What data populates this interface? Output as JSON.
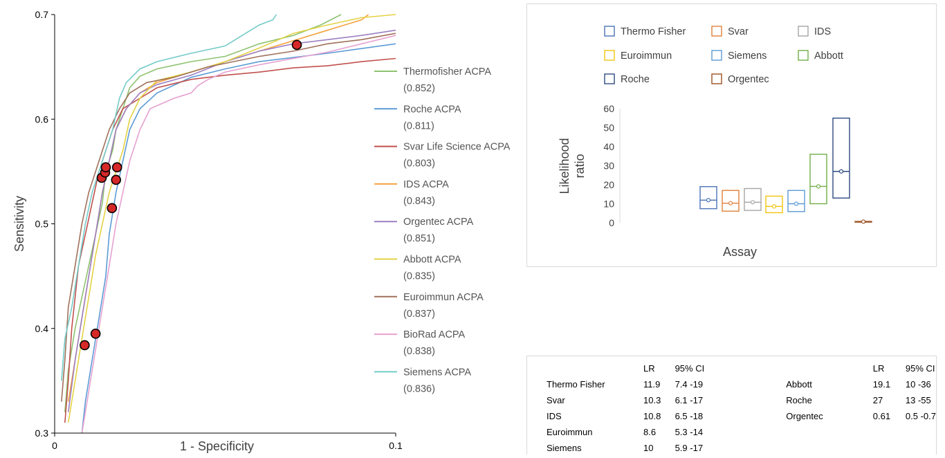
{
  "chart_data": [
    {
      "type": "line",
      "xlabel": "1 - Specificity",
      "ylabel": "Sensitivity",
      "xlim": [
        0,
        0.1
      ],
      "ylim": [
        0.3,
        0.7
      ],
      "x_ticks": [
        "0",
        "0.1"
      ],
      "y_ticks": [
        "0.3",
        "0.4",
        "0.5",
        "0.6",
        "0.7"
      ],
      "grid": false,
      "legend_position": "right",
      "series": [
        {
          "name": "Thermofisher ACPA",
          "auc": "(0.852)",
          "color": "#8dc26f",
          "points": [
            [
              0.003,
              0.32
            ],
            [
              0.004,
              0.36
            ],
            [
              0.006,
              0.4
            ],
            [
              0.008,
              0.43
            ],
            [
              0.01,
              0.46
            ],
            [
              0.012,
              0.49
            ],
            [
              0.014,
              0.52
            ],
            [
              0.015,
              0.55
            ],
            [
              0.017,
              0.57
            ],
            [
              0.018,
              0.59
            ],
            [
              0.02,
              0.61
            ],
            [
              0.022,
              0.63
            ],
            [
              0.025,
              0.641
            ],
            [
              0.03,
              0.648
            ],
            [
              0.04,
              0.655
            ],
            [
              0.05,
              0.66
            ],
            [
              0.06,
              0.672
            ],
            [
              0.07,
              0.68
            ],
            [
              0.078,
              0.69
            ],
            [
              0.084,
              0.7
            ]
          ]
        },
        {
          "name": "Roche ACPA",
          "auc": "(0.811)",
          "color": "#5b9bd5",
          "points": [
            [
              0.008,
              0.3
            ],
            [
              0.009,
              0.33
            ],
            [
              0.011,
              0.37
            ],
            [
              0.013,
              0.41
            ],
            [
              0.015,
              0.45
            ],
            [
              0.016,
              0.49
            ],
            [
              0.018,
              0.53
            ],
            [
              0.02,
              0.56
            ],
            [
              0.022,
              0.59
            ],
            [
              0.025,
              0.61
            ],
            [
              0.03,
              0.625
            ],
            [
              0.04,
              0.64
            ],
            [
              0.05,
              0.648
            ],
            [
              0.06,
              0.655
            ],
            [
              0.08,
              0.663
            ],
            [
              0.1,
              0.672
            ]
          ]
        },
        {
          "name": "Svar Life Science ACPA",
          "auc": "(0.803)",
          "color": "#c0504d",
          "points": [
            [
              0.003,
              0.31
            ],
            [
              0.004,
              0.35
            ],
            [
              0.005,
              0.4
            ],
            [
              0.006,
              0.43
            ],
            [
              0.007,
              0.46
            ],
            [
              0.009,
              0.49
            ],
            [
              0.011,
              0.52
            ],
            [
              0.013,
              0.55
            ],
            [
              0.015,
              0.57
            ],
            [
              0.017,
              0.59
            ],
            [
              0.02,
              0.61
            ],
            [
              0.025,
              0.62
            ],
            [
              0.03,
              0.63
            ],
            [
              0.04,
              0.638
            ],
            [
              0.05,
              0.642
            ],
            [
              0.06,
              0.645
            ],
            [
              0.07,
              0.649
            ],
            [
              0.08,
              0.651
            ],
            [
              0.09,
              0.655
            ],
            [
              0.1,
              0.658
            ]
          ]
        },
        {
          "name": "IDS ACPA",
          "auc": "(0.843)",
          "color": "#f4a340",
          "points": [
            [
              0.004,
              0.33
            ],
            [
              0.006,
              0.37
            ],
            [
              0.008,
              0.41
            ],
            [
              0.01,
              0.45
            ],
            [
              0.012,
              0.49
            ],
            [
              0.014,
              0.53
            ],
            [
              0.016,
              0.56
            ],
            [
              0.018,
              0.59
            ],
            [
              0.021,
              0.61
            ],
            [
              0.025,
              0.625
            ],
            [
              0.03,
              0.635
            ],
            [
              0.04,
              0.645
            ],
            [
              0.05,
              0.655
            ],
            [
              0.06,
              0.665
            ],
            [
              0.07,
              0.675
            ],
            [
              0.08,
              0.685
            ],
            [
              0.09,
              0.695
            ],
            [
              0.092,
              0.7
            ]
          ]
        },
        {
          "name": "Orgentec ACPA",
          "auc": "(0.851)",
          "color": "#9b7fc3",
          "points": [
            [
              0.004,
              0.32
            ],
            [
              0.006,
              0.37
            ],
            [
              0.008,
              0.41
            ],
            [
              0.01,
              0.45
            ],
            [
              0.012,
              0.49
            ],
            [
              0.014,
              0.53
            ],
            [
              0.016,
              0.56
            ],
            [
              0.018,
              0.59
            ],
            [
              0.021,
              0.61
            ],
            [
              0.025,
              0.625
            ],
            [
              0.03,
              0.633
            ],
            [
              0.04,
              0.642
            ],
            [
              0.05,
              0.655
            ],
            [
              0.06,
              0.665
            ],
            [
              0.07,
              0.672
            ],
            [
              0.08,
              0.676
            ],
            [
              0.09,
              0.68
            ],
            [
              0.1,
              0.685
            ]
          ]
        },
        {
          "name": "Abbott ACPA",
          "auc": "(0.835)",
          "color": "#e3d243",
          "points": [
            [
              0.004,
              0.31
            ],
            [
              0.006,
              0.35
            ],
            [
              0.008,
              0.39
            ],
            [
              0.01,
              0.43
            ],
            [
              0.012,
              0.47
            ],
            [
              0.014,
              0.5
            ],
            [
              0.016,
              0.53
            ],
            [
              0.018,
              0.55
            ],
            [
              0.02,
              0.57
            ],
            [
              0.022,
              0.6
            ],
            [
              0.025,
              0.62
            ],
            [
              0.03,
              0.637
            ],
            [
              0.04,
              0.645
            ],
            [
              0.05,
              0.655
            ],
            [
              0.06,
              0.668
            ],
            [
              0.07,
              0.682
            ],
            [
              0.08,
              0.69
            ],
            [
              0.09,
              0.697
            ],
            [
              0.1,
              0.7
            ]
          ]
        },
        {
          "name": "Euroimmun ACPA",
          "auc": "(0.837)",
          "color": "#a0705a",
          "points": [
            [
              0.002,
              0.33
            ],
            [
              0.003,
              0.37
            ],
            [
              0.004,
              0.42
            ],
            [
              0.006,
              0.46
            ],
            [
              0.008,
              0.5
            ],
            [
              0.01,
              0.53
            ],
            [
              0.012,
              0.55
            ],
            [
              0.014,
              0.57
            ],
            [
              0.016,
              0.59
            ],
            [
              0.019,
              0.61
            ],
            [
              0.022,
              0.625
            ],
            [
              0.027,
              0.635
            ],
            [
              0.035,
              0.64
            ],
            [
              0.045,
              0.65
            ],
            [
              0.06,
              0.66
            ],
            [
              0.07,
              0.665
            ],
            [
              0.08,
              0.672
            ],
            [
              0.09,
              0.676
            ],
            [
              0.1,
              0.682
            ]
          ]
        },
        {
          "name": "BioRad ACPA",
          "auc": "(0.838)",
          "color": "#e6a0d0",
          "points": [
            [
              0.008,
              0.3
            ],
            [
              0.01,
              0.34
            ],
            [
              0.012,
              0.38
            ],
            [
              0.014,
              0.42
            ],
            [
              0.016,
              0.46
            ],
            [
              0.018,
              0.5
            ],
            [
              0.02,
              0.53
            ],
            [
              0.022,
              0.56
            ],
            [
              0.025,
              0.59
            ],
            [
              0.028,
              0.61
            ],
            [
              0.035,
              0.62
            ],
            [
              0.04,
              0.625
            ],
            [
              0.042,
              0.632
            ],
            [
              0.045,
              0.638
            ],
            [
              0.05,
              0.645
            ],
            [
              0.06,
              0.652
            ],
            [
              0.07,
              0.658
            ],
            [
              0.08,
              0.664
            ],
            [
              0.09,
              0.672
            ],
            [
              0.1,
              0.68
            ]
          ]
        },
        {
          "name": "Siemens ACPA",
          "auc": "(0.836)",
          "color": "#72cbc8",
          "points": [
            [
              0.002,
              0.35
            ],
            [
              0.003,
              0.39
            ],
            [
              0.005,
              0.42
            ],
            [
              0.007,
              0.46
            ],
            [
              0.009,
              0.5
            ],
            [
              0.011,
              0.53
            ],
            [
              0.013,
              0.55
            ],
            [
              0.015,
              0.57
            ],
            [
              0.017,
              0.59
            ],
            [
              0.019,
              0.62
            ],
            [
              0.021,
              0.635
            ],
            [
              0.025,
              0.648
            ],
            [
              0.03,
              0.655
            ],
            [
              0.04,
              0.663
            ],
            [
              0.05,
              0.67
            ],
            [
              0.055,
              0.68
            ],
            [
              0.06,
              0.69
            ],
            [
              0.064,
              0.695
            ],
            [
              0.065,
              0.7
            ]
          ]
        }
      ],
      "markers": {
        "color": "#d62828",
        "points": [
          [
            0.0138,
            0.544
          ],
          [
            0.0148,
            0.549
          ],
          [
            0.015,
            0.554
          ],
          [
            0.0183,
            0.554
          ],
          [
            0.018,
            0.542
          ],
          [
            0.0168,
            0.515
          ],
          [
            0.0088,
            0.384
          ],
          [
            0.012,
            0.395
          ],
          [
            0.071,
            0.671
          ]
        ]
      }
    },
    {
      "type": "box",
      "xlabel": "Assay",
      "ylabel": "Likelihood ratio",
      "ylim": [
        0,
        60
      ],
      "y_ticks": [
        "60",
        "50",
        "40",
        "30",
        "20",
        "10",
        "0"
      ],
      "legend_position": "top",
      "series": [
        {
          "name": "Thermo Fisher",
          "color": "#4a73b5",
          "lr": 11.9,
          "ci": [
            7.4,
            19
          ]
        },
        {
          "name": "Svar",
          "color": "#e0803a",
          "lr": 10.3,
          "ci": [
            6.1,
            17
          ]
        },
        {
          "name": "IDS",
          "color": "#a5a5a5",
          "lr": 10.8,
          "ci": [
            6.5,
            18
          ]
        },
        {
          "name": "Euroimmun",
          "color": "#f2c40f",
          "lr": 8.6,
          "ci": [
            5.3,
            14
          ]
        },
        {
          "name": "Siemens",
          "color": "#5b9bd5",
          "lr": 10,
          "ci": [
            5.9,
            17
          ]
        },
        {
          "name": "Abbott",
          "color": "#70ad47",
          "lr": 19.1,
          "ci": [
            10,
            36
          ]
        },
        {
          "name": "Roche",
          "color": "#2d4a80",
          "lr": 27,
          "ci": [
            13,
            55
          ]
        },
        {
          "name": "Orgentec",
          "color": "#9c4f1f",
          "lr": 0.61,
          "ci": [
            0.5,
            0.7
          ]
        }
      ]
    }
  ],
  "lr_table": {
    "headers": [
      "LR",
      "95% CI"
    ],
    "left_rows": [
      [
        "Thermo Fisher",
        "11.9",
        "7.4 -19"
      ],
      [
        "Svar",
        "10.3",
        "6.1 -17"
      ],
      [
        "IDS",
        "10.8",
        "6.5 -18"
      ],
      [
        "Euroimmun",
        "8.6",
        "5.3 -14"
      ],
      [
        "Siemens",
        "10",
        "5.9 -17"
      ]
    ],
    "right_rows": [
      [
        "Abbott",
        "19.1",
        "10 -36"
      ],
      [
        "Roche",
        "27",
        "13 -55"
      ],
      [
        "Orgentec",
        "0.61",
        "0.5 -0.7"
      ]
    ]
  }
}
